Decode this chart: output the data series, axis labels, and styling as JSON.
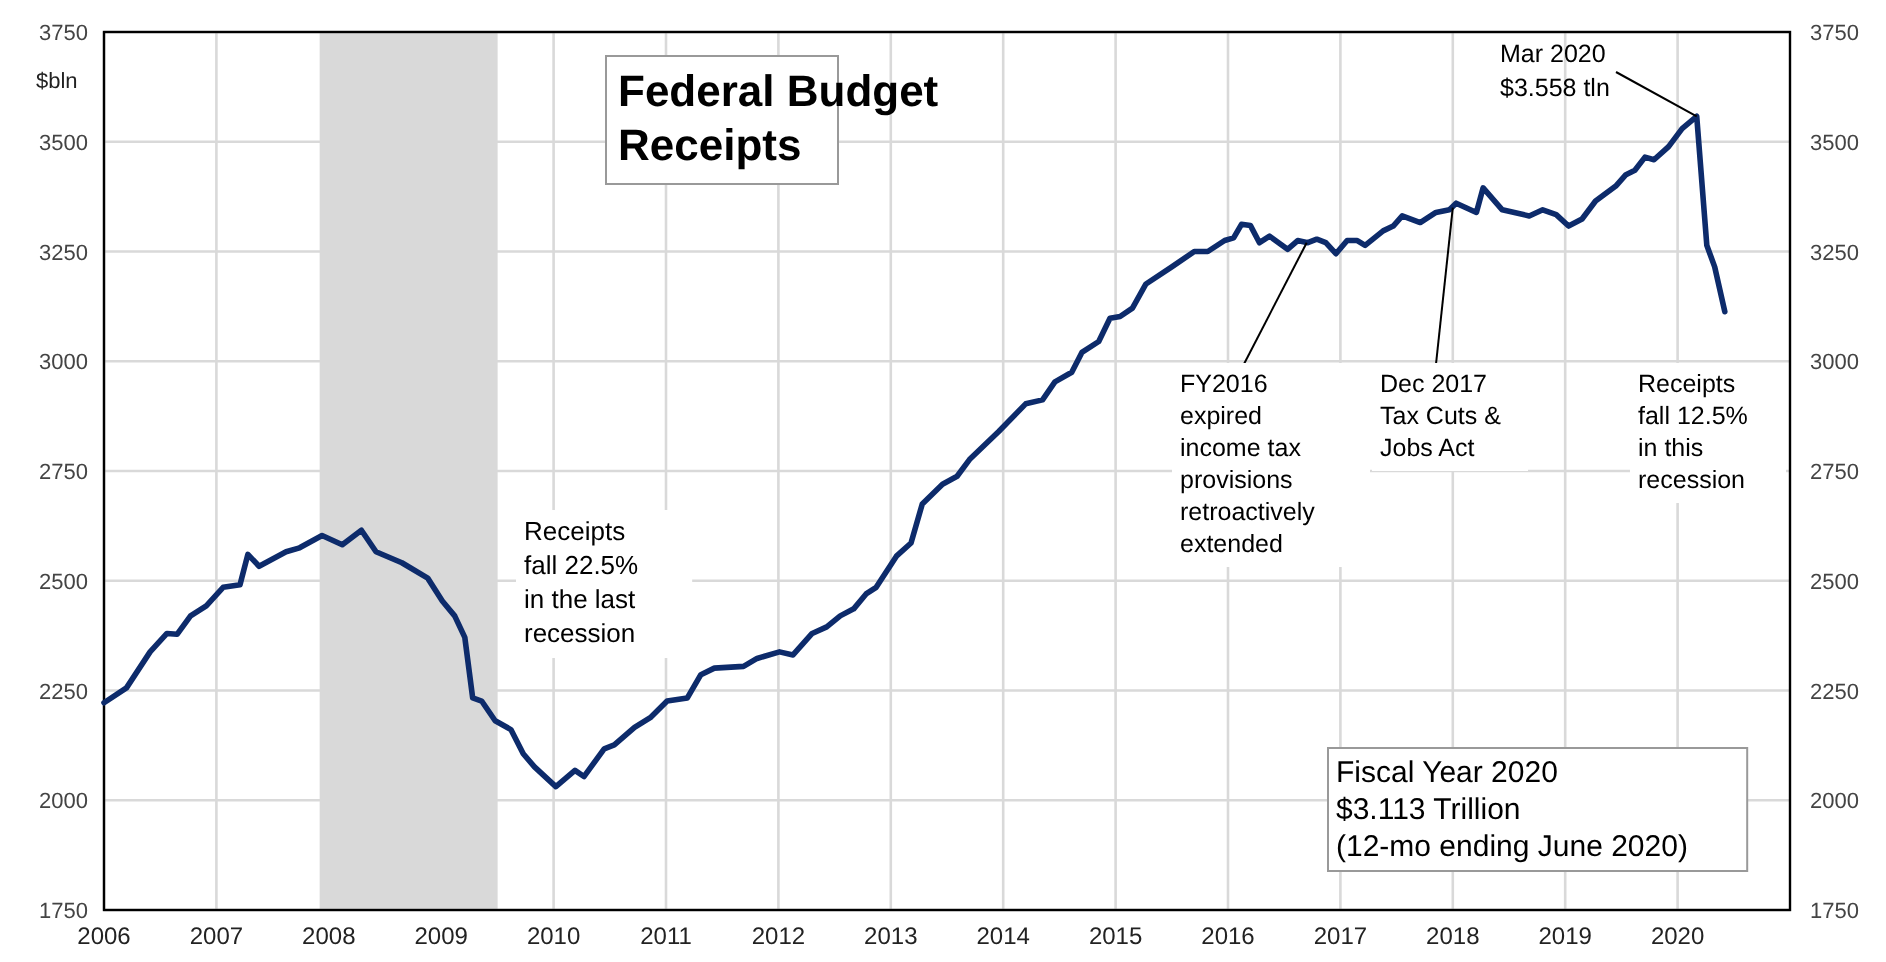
{
  "chart_data": {
    "type": "line",
    "title": "Federal Budget\nReceipts",
    "ylabel": "$bln",
    "x": [
      2006.0,
      2006.2,
      2006.41,
      2006.56,
      2006.65,
      2006.77,
      2006.91,
      2007.06,
      2007.21,
      2007.28,
      2007.38,
      2007.62,
      2007.74,
      2007.94,
      2008.12,
      2008.29,
      2008.42,
      2008.65,
      2008.88,
      2009.01,
      2009.12,
      2009.21,
      2009.28,
      2009.36,
      2009.48,
      2009.62,
      2009.73,
      2009.83,
      2010.02,
      2010.19,
      2010.27,
      2010.45,
      2010.54,
      2010.72,
      2010.86,
      2011.01,
      2011.19,
      2011.31,
      2011.43,
      2011.69,
      2011.81,
      2012.01,
      2012.13,
      2012.3,
      2012.43,
      2012.55,
      2012.67,
      2012.78,
      2012.87,
      2013.05,
      2013.18,
      2013.28,
      2013.46,
      2013.59,
      2013.7,
      2013.96,
      2014.2,
      2014.35,
      2014.46,
      2014.61,
      2014.7,
      2014.85,
      2014.95,
      2015.04,
      2015.15,
      2015.27,
      2015.5,
      2015.7,
      2015.82,
      2015.97,
      2016.05,
      2016.12,
      2016.2,
      2016.28,
      2016.37,
      2016.53,
      2016.62,
      2016.71,
      2016.79,
      2016.87,
      2016.96,
      2017.06,
      2017.15,
      2017.22,
      2017.38,
      2017.47,
      2017.55,
      2017.71,
      2017.85,
      2017.97,
      2018.03,
      2018.21,
      2018.27,
      2018.44,
      2018.68,
      2018.8,
      2018.92,
      2019.03,
      2019.15,
      2019.27,
      2019.45,
      2019.54,
      2019.62,
      2019.71,
      2019.79,
      2019.92,
      2020.04,
      2020.17,
      2020.26,
      2020.33,
      2020.42
    ],
    "series": [
      {
        "color": "#0d2b6b",
        "values": [
          2222,
          2256,
          2338,
          2380,
          2378,
          2420,
          2443,
          2485,
          2491,
          2560,
          2533,
          2566,
          2575,
          2603,
          2582,
          2615,
          2566,
          2541,
          2506,
          2454,
          2420,
          2371,
          2233,
          2226,
          2181,
          2161,
          2106,
          2076,
          2031,
          2068,
          2054,
          2117,
          2126,
          2166,
          2188,
          2226,
          2233,
          2286,
          2301,
          2305,
          2323,
          2338,
          2331,
          2380,
          2395,
          2420,
          2436,
          2470,
          2485,
          2556,
          2586,
          2675,
          2720,
          2738,
          2776,
          2840,
          2903,
          2912,
          2953,
          2975,
          3020,
          3045,
          3098,
          3102,
          3121,
          3176,
          3215,
          3250,
          3250,
          3275,
          3281,
          3312,
          3309,
          3270,
          3285,
          3255,
          3275,
          3270,
          3278,
          3270,
          3245,
          3275,
          3275,
          3264,
          3297,
          3308,
          3331,
          3316,
          3339,
          3345,
          3360,
          3339,
          3395,
          3345,
          3331,
          3345,
          3334,
          3308,
          3324,
          3365,
          3399,
          3425,
          3435,
          3465,
          3459,
          3489,
          3530,
          3558,
          3264,
          3215,
          3113
        ]
      }
    ],
    "xlim": [
      2006,
      2021
    ],
    "xticks": [
      2006,
      2007,
      2008,
      2009,
      2010,
      2011,
      2012,
      2013,
      2014,
      2015,
      2016,
      2017,
      2018,
      2019,
      2020
    ],
    "ylim": [
      1750,
      3750
    ],
    "yticks": [
      1750,
      2000,
      2250,
      2500,
      2750,
      3000,
      3250,
      3500,
      3750
    ],
    "y2lim": [
      1750,
      3750
    ],
    "y2ticks": [
      1750,
      2000,
      2250,
      2500,
      2750,
      3000,
      3250,
      3500,
      3750
    ],
    "grid": true,
    "marker": "none",
    "line_style": "solid",
    "bands": [
      {
        "axis": "x",
        "from": 2007.92,
        "to": 2009.5,
        "color": "#d9d9d9"
      }
    ],
    "annotations": [
      "Receipts\nfall 22.5%\nin the last\nrecession",
      {
        "text": "FY2016\nexpired\nincome tax\nprovisions\nretroactively\nextended",
        "x": 2016.7,
        "y": 3270
      },
      {
        "text": "Dec 2017\nTax Cuts &\nJobs Act",
        "x": 2018.0,
        "y": 3350
      },
      {
        "text": "Mar 2020\n$3.558 tln",
        "x": 2020.17,
        "y": 3558
      },
      "Receipts\nfall 12.5%\nin this\nrecession",
      "Fiscal Year 2020\n$3.113 Trillion\n(12-mo ending June 2020)"
    ]
  }
}
